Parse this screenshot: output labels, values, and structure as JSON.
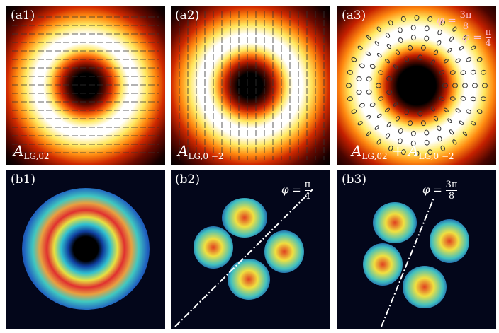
{
  "panels": {
    "a1": {
      "label": "(a1)",
      "formula_main": "A",
      "formula_sub": "LG,02"
    },
    "a2": {
      "label": "(a2)",
      "formula_main": "A",
      "formula_sub": "LG,0 −2"
    },
    "a3": {
      "label": "(a3)",
      "formula_main1": "A",
      "formula_sub1": "LG,02",
      "plus": "+",
      "formula_main2": "A",
      "formula_sub2": "LG,0 −2",
      "phi1": {
        "sym": "φ =",
        "num": "3π",
        "den": "8"
      },
      "phi2": {
        "sym": "φ =",
        "num": "π",
        "den": "4"
      }
    },
    "b1": {
      "label": "(b1)"
    },
    "b2": {
      "label": "(b2)",
      "phi": {
        "sym": "φ =",
        "num": "π",
        "den": "4"
      }
    },
    "b3": {
      "label": "(b3)",
      "phi": {
        "sym": "φ =",
        "num": "3π",
        "den": "8"
      }
    }
  }
}
